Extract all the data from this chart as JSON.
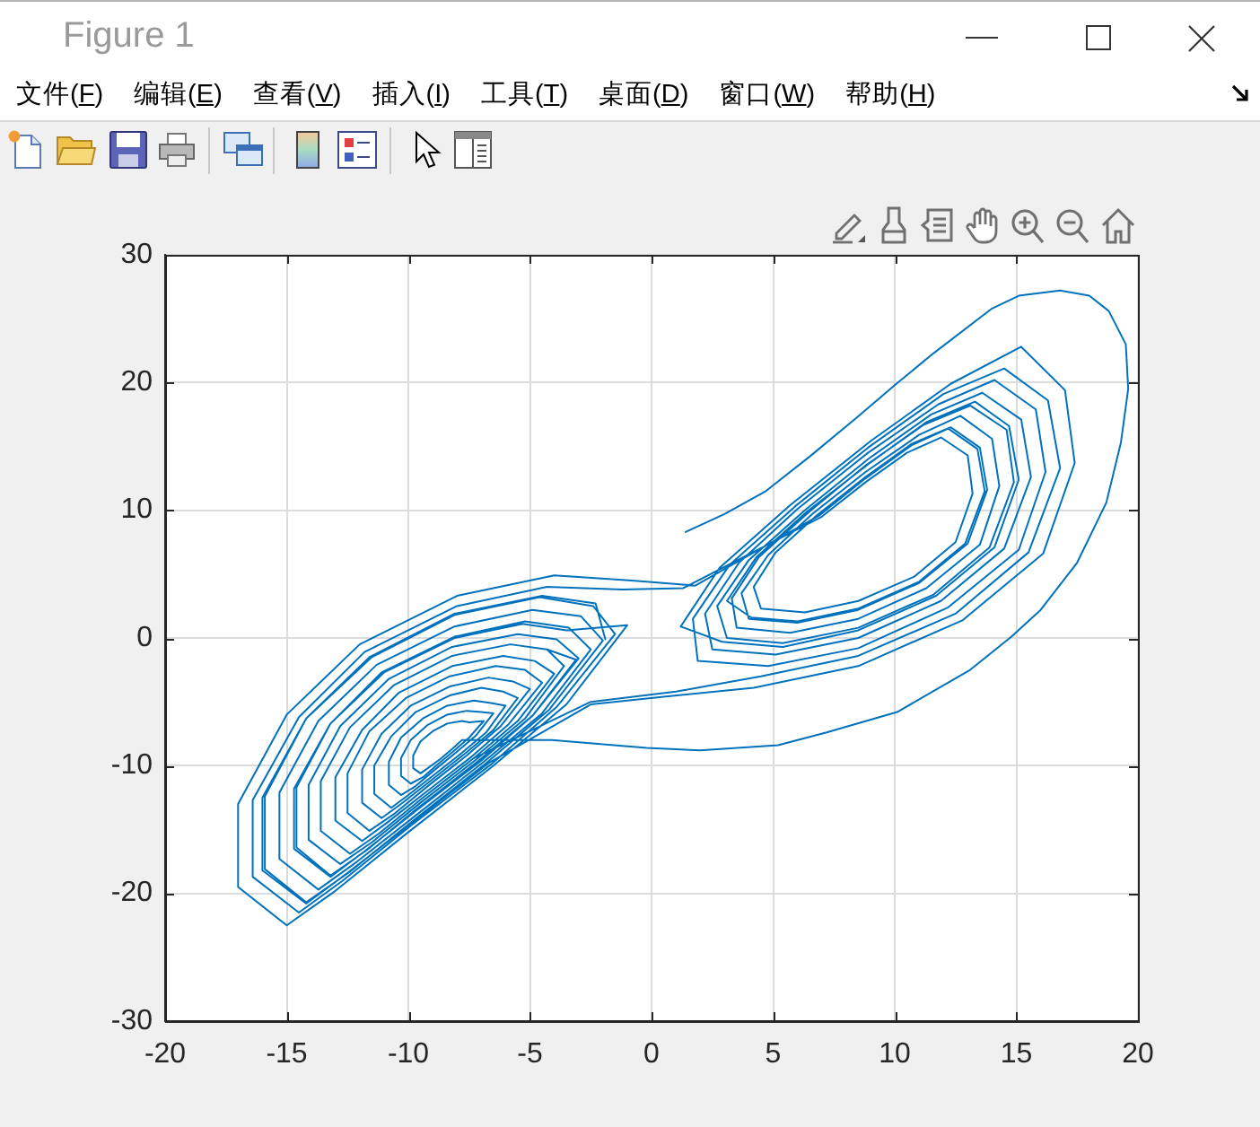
{
  "chart_data": {
    "type": "line",
    "color": "#0072bd",
    "grid": true,
    "annotations": [
      "Figure 1",
      "文件(F)",
      "编辑(E)",
      "查看(V)",
      "插入(I)",
      "工具(T)",
      "桌面(D)",
      "窗口(W)",
      "帮助(H)"
    ],
    "xlim": [
      -20,
      20
    ],
    "xticks": [
      -20,
      -15,
      -10,
      -5,
      0,
      5,
      10,
      15,
      20
    ],
    "ylim": [
      -30,
      30
    ],
    "yticks": [
      -30,
      -20,
      -10,
      0,
      10,
      20,
      30
    ],
    "x": [
      1.4,
      3,
      4.7,
      6.5,
      8.4,
      10,
      11.6,
      14,
      15.1,
      16.8,
      18,
      18.8,
      19.5,
      19.6,
      19.3,
      18.7,
      17.5,
      16,
      14.8,
      13.1,
      10.1,
      7.2,
      5.2,
      2,
      -0.2,
      -4.1,
      -7.8,
      -8.2,
      -8.7,
      -9.2,
      -9.5,
      -9.8,
      -9.8,
      -9.5,
      -9,
      -8.4,
      -7.8,
      -7.5,
      -6.9,
      -7.5,
      -8.1,
      -8.8,
      -9.4,
      -9.9,
      -10.3,
      -10.3,
      -9.9,
      -9.2,
      -8.4,
      -7.6,
      -7,
      -6.5,
      -7.2,
      -8,
      -8.9,
      -9.7,
      -10.3,
      -10.8,
      -10.8,
      -10.3,
      -9.4,
      -8.4,
      -7.3,
      -6.6,
      -6,
      -6.8,
      -7.8,
      -9,
      -10,
      -10.7,
      -11.4,
      -11.4,
      -10.7,
      -9.7,
      -8.3,
      -7,
      -6.1,
      -5.5,
      -6.5,
      -7.7,
      -9.1,
      -10.3,
      -11.1,
      -11.9,
      -11.9,
      -11.1,
      -9.9,
      -8.3,
      -6.7,
      -5.7,
      -5,
      -6.2,
      -7.6,
      -9.2,
      -10.6,
      -11.6,
      -12.5,
      -12.5,
      -11.6,
      -10.1,
      -8.3,
      -6.4,
      -5.2,
      -4.5,
      -5.9,
      -7.4,
      -9.3,
      -10.9,
      -11.9,
      -13,
      -13,
      -11.9,
      -10.4,
      -8.2,
      -6.1,
      -4.8,
      -4,
      -5.5,
      -7.3,
      -9.4,
      -11.2,
      -12.4,
      -13.6,
      -13.6,
      -12.4,
      -10.6,
      -8.2,
      -5.8,
      -4.3,
      -3.6,
      -5.2,
      -7.2,
      -9.5,
      -11.5,
      -12.8,
      -14.1,
      -14.1,
      -12.8,
      -10.8,
      -8.2,
      -5.5,
      -3.9,
      -3,
      -4.9,
      -7,
      -9.6,
      -11.8,
      -13.2,
      -14.7,
      -14.7,
      -13.2,
      -11.1,
      -8.1,
      -5.2,
      -3.4,
      -2.5,
      -4.5,
      -6.9,
      -9.7,
      -12.1,
      -13.7,
      -15.3,
      -15.3,
      -13.7,
      -11.3,
      -8.1,
      -4.9,
      -2.9,
      -2,
      -4.2,
      -6.8,
      -9.8,
      -12.4,
      -14.2,
      -15.9,
      -15.9,
      -14.2,
      -11.5,
      -8.1,
      -4.6,
      -2.4,
      -1.5,
      -3.9,
      -6.6,
      -9.9,
      -12.7,
      -14.5,
      -16.4,
      -16.4,
      -14.5,
      -11.8,
      -8,
      -4.3,
      -1.2,
      1.3,
      7,
      8.8,
      10.5,
      11.9,
      13,
      13.2,
      12.5,
      10.8,
      8.5,
      6.3,
      4.5,
      4.2,
      5.1,
      6.8,
      8.8,
      10.7,
      12.3,
      13.5,
      13.8,
      13,
      11,
      8.5,
      6,
      4,
      3.7,
      4.8,
      6.6,
      8.8,
      11,
      12.7,
      14,
      14.3,
      13.5,
      11.3,
      8.5,
      5.7,
      3.5,
      3.3,
      4.4,
      6.5,
      8.8,
      11.2,
      13.1,
      14.6,
      14.9,
      13.9,
      11.6,
      8.5,
      5.4,
      3.1,
      2.7,
      4,
      6.3,
      8.9,
      11.5,
      13.6,
      15.2,
      15.6,
      14.5,
      11.9,
      8.5,
      5.1,
      2.5,
      2.2,
      3.6,
      6,
      8.9,
      11.8,
      14.1,
      15.8,
      16.2,
      15.1,
      12.2,
      8.5,
      4.8,
      1.9,
      1.7,
      3.2,
      5.9,
      8.9,
      12,
      14.5,
      16.3,
      16.8,
      15.5,
      12.5,
      8.5,
      4.5,
      1,
      -2.5,
      -7.3,
      -9.4,
      -11.2,
      -12.4,
      -13.6,
      -13.6,
      -12.4,
      -10.6,
      -8.2,
      -5.8,
      -4.3,
      -3.1,
      -4.9,
      -7.1,
      -9.6,
      -11.7,
      -13.2,
      -14.6,
      -14.6,
      -13.2,
      -11,
      -8.1,
      -5.3,
      -3.5,
      -1,
      -3.5,
      -6.5,
      -10,
      -13,
      -15,
      -17,
      -17,
      -15,
      -12,
      -8,
      -4,
      -0.8,
      1.8,
      6.9,
      8.8,
      10.7,
      12.2,
      13.4,
      13.7,
      12.9,
      11,
      8.5,
      6,
      4.1,
      3.1,
      4.3,
      6.4,
      8.9,
      11.3,
      13.3,
      14.7,
      15.1,
      14.1,
      11.7,
      8.5,
      5.4,
      2.9,
      1.2,
      2.8,
      5.7,
      9,
      12.3,
      15.2,
      17,
      17.4,
      16.1,
      12.8,
      8.5,
      4.2,
      0.5,
      -2.5,
      -6.7,
      -9.8,
      -12.5,
      -14.2,
      -16,
      -16,
      -14.2,
      -11.6,
      -8.1,
      -4.5,
      -2.3,
      -1.9
    ],
    "values": [
      8.3,
      9.7,
      11.5,
      14.2,
      17.2,
      19.8,
      22.3,
      25.8,
      26.8,
      27.2,
      26.8,
      25.6,
      23,
      19.5,
      15.3,
      10.6,
      5.9,
      2.2,
      0.1,
      -2.5,
      -5.8,
      -7.4,
      -8.4,
      -8.8,
      -8.6,
      -8,
      -8,
      -8.7,
      -9.5,
      -10.2,
      -10.6,
      -10.2,
      -9.2,
      -8.1,
      -7.3,
      -6.7,
      -6.5,
      -6.6,
      -6.5,
      -7.8,
      -8.8,
      -9.9,
      -10.9,
      -11.4,
      -10.8,
      -9.4,
      -8,
      -6.8,
      -6,
      -5.7,
      -5.8,
      -5.9,
      -7.6,
      -8.9,
      -10.3,
      -11.6,
      -12.3,
      -11.5,
      -9.7,
      -7.8,
      -6.3,
      -5.3,
      -4.9,
      -5.1,
      -5.3,
      -7.4,
      -9,
      -10.8,
      -12.3,
      -13.3,
      -12.2,
      -10,
      -7.7,
      -5.8,
      -4.5,
      -3.9,
      -4.2,
      -4.7,
      -7.2,
      -9.1,
      -11.2,
      -13,
      -14.1,
      -12.9,
      -10.3,
      -7.5,
      -5.3,
      -3.8,
      -3.1,
      -3.4,
      -4,
      -6.9,
      -9.2,
      -11.6,
      -13.8,
      -15.1,
      -13.7,
      -10.6,
      -7.3,
      -4.7,
      -3,
      -2.2,
      -2.5,
      -3.5,
      -6.8,
      -9.3,
      -12.1,
      -14.5,
      -15.9,
      -14.3,
      -10.9,
      -7.2,
      -4.3,
      -2.2,
      -1.4,
      -1.8,
      -2.8,
      -6.5,
      -9.4,
      -12.5,
      -15.3,
      -16.9,
      -15.1,
      -11.2,
      -7,
      -3.7,
      -1.4,
      -0.5,
      -0.9,
      -2.2,
      -6.3,
      -9.5,
      -12.9,
      -16,
      -17.7,
      -15.8,
      -11.5,
      -6.9,
      -3.2,
      -0.7,
      0.3,
      -0.1,
      -1.6,
      -6.1,
      -9.6,
      -13.4,
      -16.7,
      -18.7,
      -16.5,
      -11.8,
      -6.7,
      -2.7,
      0.1,
      1.3,
      0.8,
      -0.9,
      -5.9,
      -9.7,
      -13.9,
      -17.5,
      -19.7,
      -17.3,
      -12.1,
      -6.5,
      -2.1,
      0.9,
      2.2,
      1.7,
      -0.2,
      -5.6,
      -9.8,
      -14.3,
      -18.3,
      -20.7,
      -18.1,
      -12.4,
      -6.3,
      -1.5,
      1.8,
      3.2,
      2.5,
      0.3,
      -5.4,
      -9.9,
      -14.7,
      -19,
      -21.5,
      -18.7,
      -12.7,
      -6.2,
      -1.1,
      2.5,
      4,
      3.8,
      3.9,
      9.5,
      12.2,
      14.5,
      15.7,
      14.3,
      11.3,
      7.5,
      4.8,
      2.9,
      2,
      2.3,
      4,
      6.7,
      9.6,
      12.6,
      15.2,
      16.5,
      14.9,
      11.6,
      7.4,
      4.3,
      2.2,
      1.2,
      1.5,
      3.5,
      6.5,
      9.7,
      13,
      15.9,
      17.4,
      15.6,
      11.9,
      7.3,
      3.9,
      1.5,
      0.4,
      0.8,
      3.1,
      6.3,
      9.9,
      13.5,
      16.7,
      18.2,
      16.3,
      12.2,
      7.1,
      3.4,
      0.8,
      -0.4,
      0,
      2.5,
      6.1,
      10,
      14,
      17.5,
      19.2,
      17.1,
      12.6,
      7,
      2.9,
      0,
      -1.3,
      -0.9,
      1.9,
      5.9,
      10.1,
      14.5,
      18.3,
      20.2,
      17.9,
      13,
      6.9,
      2.4,
      -0.8,
      -2.2,
      -1.8,
      1.5,
      5.7,
      10.3,
      14.9,
      19.1,
      21.1,
      18.6,
      13.3,
      6.7,
      1.9,
      -1.4,
      -3,
      -4.2,
      -5,
      -9.4,
      -12.5,
      -15.3,
      -16.9,
      -15.1,
      -11.2,
      -7,
      -3.7,
      -1.4,
      -0.5,
      -0.9,
      -1.7,
      -6.1,
      -9.6,
      -13.3,
      -16.6,
      -18.6,
      -16.4,
      -11.7,
      -6.7,
      -2.7,
      0,
      1.1,
      0.6,
      1,
      -5.2,
      -10,
      -15.2,
      -19.8,
      -22.5,
      -19.5,
      -13,
      -6,
      -0.5,
      3.3,
      4.9,
      4.5,
      4.1,
      9.6,
      12.5,
      15.1,
      16.4,
      14.8,
      11.5,
      7.4,
      4.4,
      2.3,
      1.3,
      1.6,
      2.9,
      6.3,
      9.9,
      13.6,
      16.9,
      18.5,
      16.6,
      12.4,
      7.1,
      3.3,
      0.6,
      -0.7,
      -0.3,
      0.9,
      5.5,
      10.4,
      15.4,
      19.9,
      22.8,
      19.4,
      13.7,
      6.6,
      1.4,
      -2.2,
      -3.9,
      -4.6,
      -5.2,
      -9.8,
      -14.4,
      -18.4,
      -20.8,
      -18.2,
      -12.5,
      -6.3,
      -1.5,
      1.9,
      3.3,
      2.7,
      -0.1
    ]
  }
}
